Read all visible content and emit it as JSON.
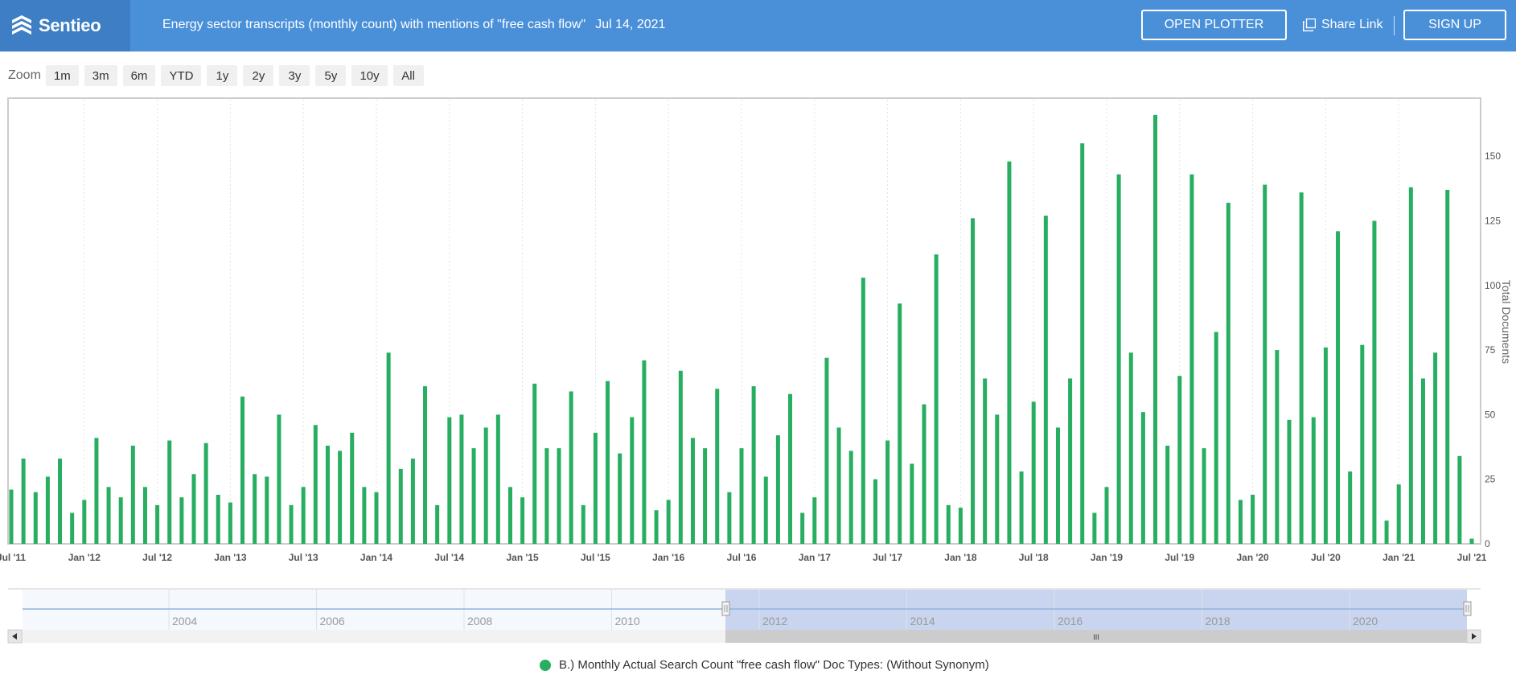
{
  "header": {
    "brand": "Sentieo",
    "title": "Energy sector transcripts (monthly count) with mentions of \"free cash flow\"",
    "date": "Jul 14, 2021",
    "open_plotter": "OPEN PLOTTER",
    "share_link": "Share Link",
    "sign_up": "SIGN UP"
  },
  "zoom": {
    "label": "Zoom",
    "options": [
      "1m",
      "3m",
      "6m",
      "YTD",
      "1y",
      "2y",
      "3y",
      "5y",
      "10y",
      "All"
    ]
  },
  "navigator": {
    "labels": [
      "2004",
      "2006",
      "2008",
      "2010",
      "2012",
      "2014",
      "2016",
      "2018",
      "2020"
    ],
    "scroll_grip": "III"
  },
  "colors": {
    "bar": "#27ae60",
    "header": "#4a90d9",
    "brand_box": "#3d7ec4",
    "navigator_selection": "#c9d4ee"
  },
  "chart_data": {
    "type": "bar",
    "ylabel": "Total Documents",
    "ylim": [
      0,
      170
    ],
    "yticks": [
      0,
      25,
      50,
      75,
      100,
      125,
      150
    ],
    "grid": "vertical dotted",
    "legend_position": "bottom-center",
    "xtick_labels": [
      "Jul '11",
      "Jan '12",
      "Jul '12",
      "Jan '13",
      "Jul '13",
      "Jan '14",
      "Jul '14",
      "Jan '15",
      "Jul '15",
      "Jan '16",
      "Jul '16",
      "Jan '17",
      "Jul '17",
      "Jan '18",
      "Jul '18",
      "Jan '19",
      "Jul '19",
      "Jan '20",
      "Jul '20",
      "Jan '21",
      "Jul '21"
    ],
    "series": [
      {
        "name": "B.) Monthly Actual Search Count \"free cash flow\" Doc Types: (Without Synonym)",
        "start_month": "2011-07",
        "values": [
          21,
          33,
          20,
          26,
          33,
          12,
          17,
          41,
          22,
          18,
          38,
          22,
          15,
          40,
          18,
          27,
          39,
          19,
          16,
          57,
          27,
          26,
          50,
          15,
          22,
          46,
          38,
          36,
          43,
          22,
          20,
          74,
          29,
          33,
          61,
          15,
          49,
          50,
          37,
          45,
          50,
          22,
          18,
          62,
          37,
          37,
          59,
          15,
          43,
          63,
          35,
          49,
          71,
          13,
          17,
          67,
          41,
          37,
          60,
          20,
          37,
          61,
          26,
          42,
          58,
          12,
          18,
          72,
          45,
          36,
          103,
          25,
          40,
          93,
          31,
          54,
          112,
          15,
          14,
          126,
          64,
          50,
          148,
          28,
          55,
          127,
          45,
          64,
          155,
          12,
          22,
          143,
          74,
          51,
          166,
          38,
          65,
          143,
          37,
          82,
          132,
          17,
          19,
          139,
          75,
          48,
          136,
          49,
          76,
          121,
          28,
          77,
          125,
          9,
          23,
          138,
          64,
          74,
          137,
          34,
          2
        ]
      }
    ]
  }
}
